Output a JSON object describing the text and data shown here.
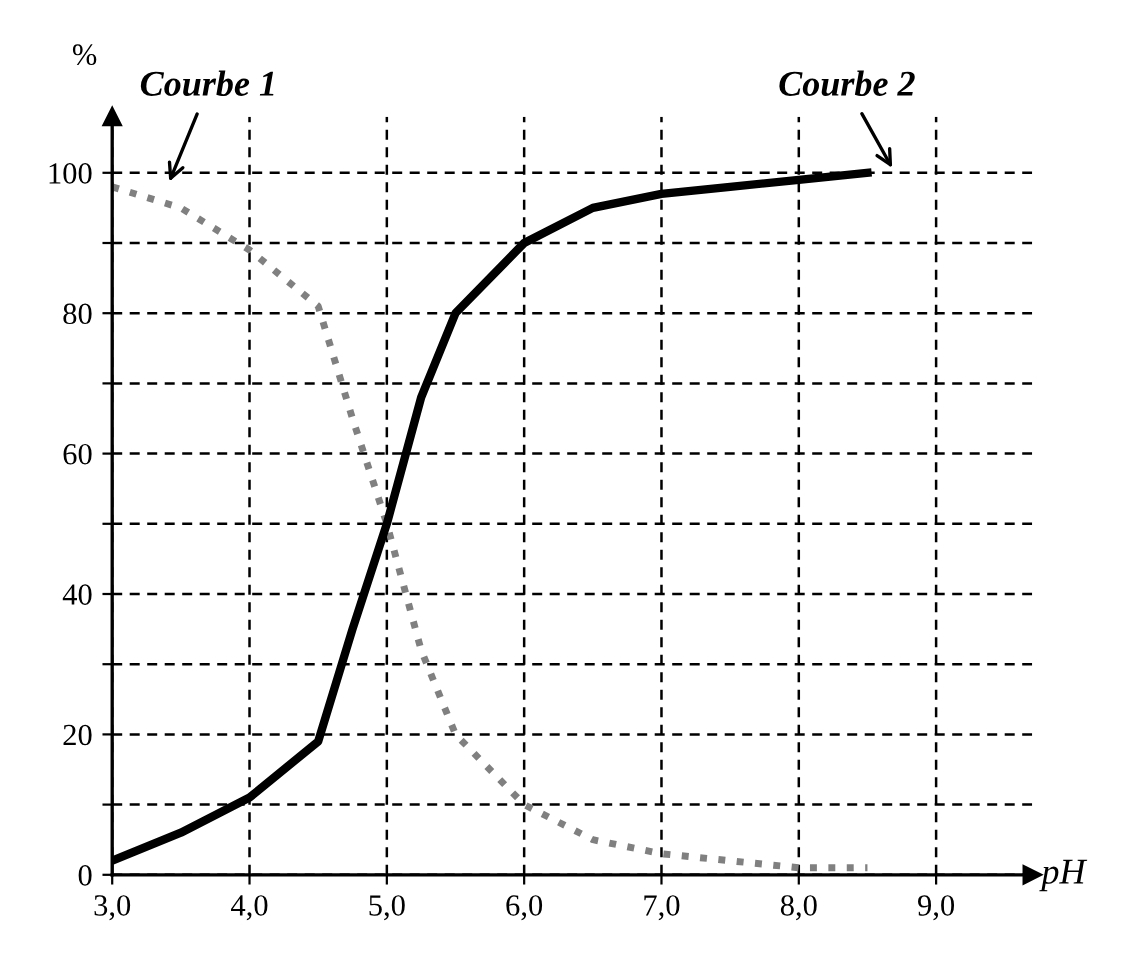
{
  "chart_data": {
    "type": "line",
    "xlabel": "pH",
    "ylabel": "%",
    "x": [
      3.0,
      3.5,
      4.0,
      4.5,
      4.75,
      5.0,
      5.25,
      5.5,
      6.0,
      6.5,
      7.0,
      7.5,
      8.0,
      8.5
    ],
    "series": [
      {
        "name": "Courbe 1",
        "color": "#808080",
        "line_style": "dotted",
        "values": [
          98,
          95,
          89,
          81,
          65,
          50,
          32,
          20,
          10,
          5,
          3,
          2,
          1,
          1
        ]
      },
      {
        "name": "Courbe 2",
        "color": "#000000",
        "line_style": "solid",
        "values": [
          2,
          6,
          11,
          19,
          35,
          50,
          68,
          80,
          90,
          95,
          97,
          98,
          99,
          100
        ]
      }
    ],
    "xlim": [
      3.0,
      9.7
    ],
    "ylim": [
      0,
      108
    ],
    "xticks": [
      {
        "value": 3,
        "label": "3,0"
      },
      {
        "value": 4,
        "label": "4,0"
      },
      {
        "value": 5,
        "label": "5,0"
      },
      {
        "value": 6,
        "label": "6,0"
      },
      {
        "value": 7,
        "label": "7,0"
      },
      {
        "value": 8,
        "label": "8,0"
      },
      {
        "value": 9,
        "label": "9,0"
      }
    ],
    "yticks": [
      0,
      {
        "value": 10,
        "label": null
      },
      20,
      {
        "value": 30,
        "label": null
      },
      40,
      {
        "value": 50,
        "label": null
      },
      60,
      {
        "value": 70,
        "label": null
      },
      80,
      {
        "value": 90,
        "label": null
      },
      100
    ],
    "grid": true,
    "marker": "none",
    "legend": false
  }
}
